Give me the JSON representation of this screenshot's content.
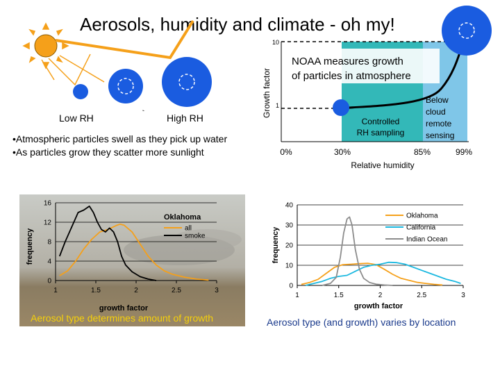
{
  "title": "Aerosols, humidity and climate - oh my!",
  "rh_diagram": {
    "low_label": "Low RH",
    "high_label": "High RH",
    "colors": {
      "sun": "#f5a01a",
      "particle": "#1a5ce0",
      "arrow": "#f5a01a"
    }
  },
  "bullets": [
    "•Atmospheric particles swell as they pick up water",
    "•As particles grow they scatter more sunlight"
  ],
  "growth_panel": {
    "ylabel": "Growth factor",
    "xlabel": "Relative humidity",
    "y_ticks": [
      "10",
      "1"
    ],
    "x_ticks": [
      "0%",
      "30%",
      "85%",
      "99%"
    ],
    "box_line1": "NOAA measures growth",
    "box_line2": "of particles in atmosphere",
    "controlled_line1": "Controlled",
    "controlled_line2": "RH sampling",
    "below_cloud_lines": [
      "Below",
      "cloud",
      "remote",
      "sensing"
    ],
    "colors": {
      "controlled": "#33b8b8",
      "below_cloud": "#7fc6e8"
    }
  },
  "chart_data": [
    {
      "type": "line",
      "xlabel": "growth factor",
      "ylabel": "frequency",
      "xlim": [
        1,
        3
      ],
      "ylim": [
        0,
        16
      ],
      "x_ticks": [
        "1",
        "1.5",
        "2",
        "2.5",
        "3"
      ],
      "y_ticks": [
        "0",
        "4",
        "8",
        "12",
        "16"
      ],
      "legend_title": "Oklahoma",
      "legend_position": "top-right",
      "series": [
        {
          "name": "all",
          "color": "#f5a01a",
          "x": [
            1.05,
            1.15,
            1.25,
            1.35,
            1.45,
            1.55,
            1.65,
            1.75,
            1.8,
            1.85,
            1.95,
            2.05,
            2.15,
            2.25,
            2.35,
            2.45,
            2.6,
            2.75,
            2.9
          ],
          "y": [
            1,
            2,
            4,
            6.5,
            8.5,
            10,
            10.5,
            11.3,
            11.6,
            11.4,
            10,
            7.5,
            5,
            3.2,
            2,
            1.3,
            0.7,
            0.3,
            0.1
          ]
        },
        {
          "name": "smoke",
          "color": "#000000",
          "x": [
            1.05,
            1.12,
            1.2,
            1.28,
            1.35,
            1.42,
            1.47,
            1.52,
            1.57,
            1.62,
            1.67,
            1.72,
            1.77,
            1.82,
            1.87,
            1.95,
            2.05,
            2.15,
            2.25
          ],
          "y": [
            5,
            8,
            11,
            14,
            14.5,
            15.3,
            14,
            12,
            10.5,
            10,
            10.8,
            10,
            8,
            5,
            3.2,
            1.8,
            0.8,
            0.3,
            0
          ]
        }
      ],
      "caption": "Aerosol type determines amount of growth"
    },
    {
      "type": "line",
      "xlabel": "growth factor",
      "ylabel": "frequency",
      "xlim": [
        1,
        3
      ],
      "ylim": [
        0,
        40
      ],
      "x_ticks": [
        "1",
        "1.5",
        "2",
        "2.5",
        "3"
      ],
      "y_ticks": [
        "0",
        "10",
        "20",
        "30",
        "40"
      ],
      "legend_position": "top-right",
      "series": [
        {
          "name": "Oklahoma",
          "color": "#f5a01a",
          "x": [
            1.05,
            1.15,
            1.25,
            1.35,
            1.45,
            1.55,
            1.65,
            1.75,
            1.85,
            1.95,
            2.05,
            2.15,
            2.25,
            2.35,
            2.45,
            2.55,
            2.65,
            2.75
          ],
          "y": [
            0.5,
            1.5,
            3,
            6,
            9,
            10.3,
            10.5,
            10.8,
            11,
            10.3,
            8,
            5.5,
            3.5,
            2.5,
            1.5,
            1,
            0.5,
            0.2
          ]
        },
        {
          "name": "California",
          "color": "#1ab8e0",
          "x": [
            1.1,
            1.2,
            1.3,
            1.4,
            1.5,
            1.6,
            1.7,
            1.8,
            1.9,
            2.0,
            2.1,
            2.2,
            2.3,
            2.4,
            2.5,
            2.6,
            2.7,
            2.8,
            2.9,
            2.97
          ],
          "y": [
            0,
            1,
            2,
            3.5,
            4.5,
            5,
            7,
            9,
            10,
            10.5,
            11.5,
            11.3,
            10.5,
            9,
            7.5,
            6,
            4.5,
            3,
            2,
            1
          ]
        },
        {
          "name": "Indian Ocean",
          "color": "#8c8c8c",
          "x": [
            1.3,
            1.4,
            1.47,
            1.52,
            1.56,
            1.6,
            1.63,
            1.66,
            1.7,
            1.75,
            1.8,
            1.87,
            1.95,
            2.05,
            2.15
          ],
          "y": [
            0,
            1,
            4,
            14,
            26,
            33,
            34,
            30,
            18,
            8,
            3.5,
            1.5,
            0.6,
            0.2,
            0
          ]
        }
      ],
      "caption": "Aerosol type (and growth) varies by location"
    }
  ]
}
